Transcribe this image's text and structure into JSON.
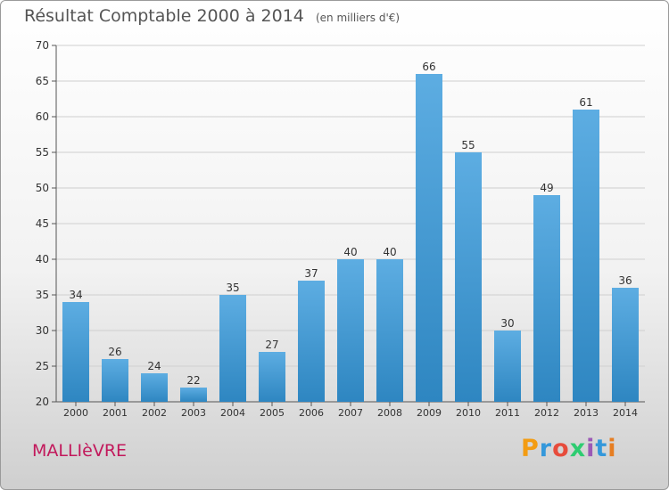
{
  "chart_data": {
    "type": "bar",
    "title": "Résultat Comptable 2000 à 2014",
    "unit_label": "(en milliers d'€)",
    "categories": [
      "2000",
      "2001",
      "2002",
      "2003",
      "2004",
      "2005",
      "2006",
      "2007",
      "2008",
      "2009",
      "2010",
      "2011",
      "2012",
      "2013",
      "2014"
    ],
    "values": [
      34,
      26,
      24,
      22,
      35,
      27,
      37,
      40,
      40,
      66,
      55,
      30,
      49,
      61,
      36
    ],
    "ylim": [
      20,
      70
    ],
    "yticks": [
      20,
      25,
      30,
      35,
      40,
      45,
      50,
      55,
      60,
      65,
      70
    ],
    "grid": true,
    "bar_color_top": "#5dade2",
    "bar_color_bottom": "#2e86c1"
  },
  "footer": {
    "city": "MALLIèVRE",
    "logo_letters": [
      "P",
      "r",
      "o",
      "x",
      "i",
      "t",
      "i"
    ]
  }
}
